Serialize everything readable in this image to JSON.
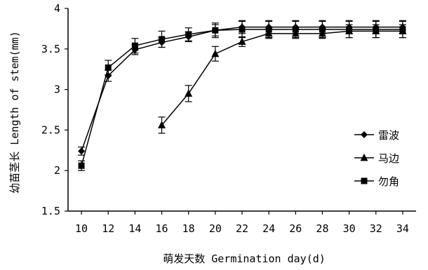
{
  "chart_data": {
    "type": "line",
    "xlabel": "萌发天数 Germination day(d)",
    "ylabel": "幼苗茎长 Length of stem(mm)",
    "xticks": [
      10,
      12,
      14,
      16,
      18,
      20,
      22,
      24,
      26,
      28,
      30,
      32,
      34
    ],
    "yticks": [
      "1.5",
      "2",
      "2.5",
      "3",
      "3.5",
      "4"
    ],
    "xlim": [
      9,
      35
    ],
    "ylim": [
      1.5,
      4
    ],
    "grid": false,
    "legend_position": "right",
    "series": [
      {
        "name": "雷波",
        "marker": "diamond",
        "x": [
          10,
          12,
          14,
          16,
          18,
          20,
          22,
          24,
          26,
          28,
          30,
          32,
          34
        ],
        "y": [
          2.24,
          3.17,
          3.49,
          3.58,
          3.65,
          3.73,
          3.77,
          3.77,
          3.77,
          3.77,
          3.77,
          3.77,
          3.77
        ],
        "err": [
          0.05,
          0.07,
          0.06,
          0.06,
          0.06,
          0.07,
          0.08,
          0.08,
          0.08,
          0.08,
          0.08,
          0.08,
          0.08
        ]
      },
      {
        "name": "马边",
        "marker": "triangle",
        "x": [
          16,
          18,
          20,
          22,
          24,
          26,
          28,
          30,
          32,
          34
        ],
        "y": [
          2.56,
          2.95,
          3.44,
          3.59,
          3.69,
          3.69,
          3.69,
          3.72,
          3.72,
          3.72
        ],
        "err": [
          0.1,
          0.1,
          0.09,
          0.06,
          0.06,
          0.06,
          0.06,
          0.08,
          0.08,
          0.08
        ]
      },
      {
        "name": "勿角",
        "marker": "square",
        "x": [
          10,
          12,
          14,
          16,
          18,
          20,
          22,
          24,
          26,
          28,
          30,
          32,
          34
        ],
        "y": [
          2.06,
          3.27,
          3.54,
          3.62,
          3.68,
          3.73,
          3.74,
          3.74,
          3.74,
          3.74,
          3.74,
          3.74,
          3.74
        ],
        "err": [
          0.06,
          0.09,
          0.09,
          0.1,
          0.08,
          0.09,
          0.1,
          0.1,
          0.1,
          0.1,
          0.1,
          0.1,
          0.1
        ]
      }
    ]
  }
}
